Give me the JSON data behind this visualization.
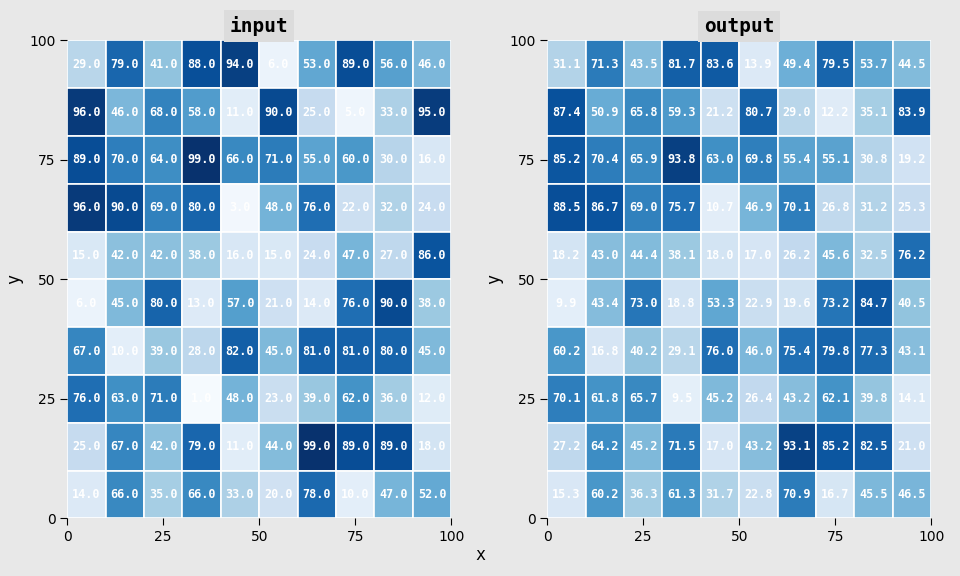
{
  "input": [
    [
      29.0,
      79.0,
      41.0,
      88.0,
      94.0,
      6.0,
      53.0,
      89.0,
      56.0,
      46.0
    ],
    [
      96.0,
      46.0,
      68.0,
      58.0,
      11.0,
      90.0,
      25.0,
      5.0,
      33.0,
      95.0
    ],
    [
      89.0,
      70.0,
      64.0,
      99.0,
      66.0,
      71.0,
      55.0,
      60.0,
      30.0,
      16.0
    ],
    [
      96.0,
      90.0,
      69.0,
      80.0,
      3.0,
      48.0,
      76.0,
      22.0,
      32.0,
      24.0
    ],
    [
      15.0,
      42.0,
      42.0,
      38.0,
      16.0,
      15.0,
      24.0,
      47.0,
      27.0,
      86.0
    ],
    [
      6.0,
      45.0,
      80.0,
      13.0,
      57.0,
      21.0,
      14.0,
      76.0,
      90.0,
      38.0
    ],
    [
      67.0,
      10.0,
      39.0,
      28.0,
      82.0,
      45.0,
      81.0,
      81.0,
      80.0,
      45.0
    ],
    [
      76.0,
      63.0,
      71.0,
      1.0,
      48.0,
      23.0,
      39.0,
      62.0,
      36.0,
      12.0
    ],
    [
      25.0,
      67.0,
      42.0,
      79.0,
      11.0,
      44.0,
      99.0,
      89.0,
      89.0,
      18.0
    ],
    [
      14.0,
      66.0,
      35.0,
      66.0,
      33.0,
      20.0,
      78.0,
      10.0,
      47.0,
      52.0
    ]
  ],
  "output": [
    [
      31.1,
      71.3,
      43.5,
      81.7,
      83.6,
      13.9,
      49.4,
      79.5,
      53.7,
      44.5
    ],
    [
      87.4,
      50.9,
      65.8,
      59.3,
      21.2,
      80.7,
      29.0,
      12.2,
      35.1,
      83.9
    ],
    [
      85.2,
      70.4,
      65.9,
      93.8,
      63.0,
      69.8,
      55.4,
      55.1,
      30.8,
      19.2
    ],
    [
      88.5,
      86.7,
      69.0,
      75.7,
      10.7,
      46.9,
      70.1,
      26.8,
      31.2,
      25.3
    ],
    [
      18.2,
      43.0,
      44.4,
      38.1,
      18.0,
      17.0,
      26.2,
      45.6,
      32.5,
      76.2
    ],
    [
      9.9,
      43.4,
      73.0,
      18.8,
      53.3,
      22.9,
      19.6,
      73.2,
      84.7,
      40.5
    ],
    [
      60.2,
      16.8,
      40.2,
      29.1,
      76.0,
      46.0,
      75.4,
      79.8,
      77.3,
      43.1
    ],
    [
      70.1,
      61.8,
      65.7,
      9.5,
      45.2,
      26.4,
      43.2,
      62.1,
      39.8,
      14.1
    ],
    [
      27.2,
      64.2,
      45.2,
      71.5,
      17.0,
      43.2,
      93.1,
      85.2,
      82.5,
      21.0
    ],
    [
      15.3,
      60.2,
      36.3,
      61.3,
      31.7,
      22.8,
      70.9,
      16.7,
      45.5,
      46.5
    ]
  ],
  "title_input": "input",
  "title_output": "output",
  "xlabel": "x",
  "ylabel": "y",
  "colormap": "Blues",
  "vmin": 0,
  "vmax": 100,
  "grid_color": "#ffffff",
  "background_color": "#e8e8e8",
  "panel_bg": "#dcdcdc",
  "text_color": "#ffffff",
  "title_fontsize": 14,
  "label_fontsize": 12,
  "cell_fontsize": 8.5,
  "tick_fontsize": 10
}
